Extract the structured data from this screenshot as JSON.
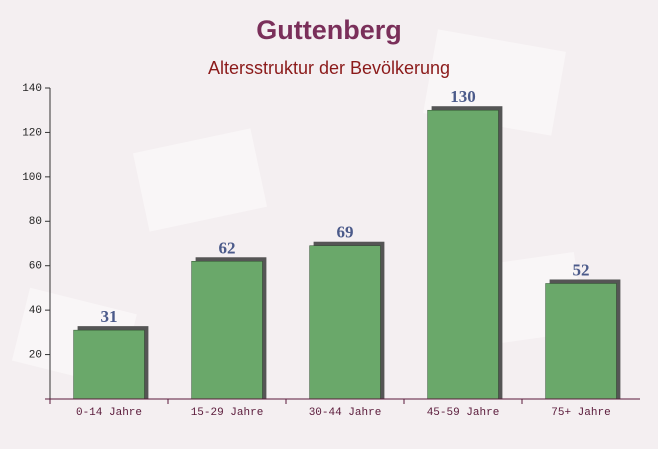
{
  "chart_data": {
    "type": "bar",
    "title": "Guttenberg",
    "subtitle": "Altersstruktur der Bevölkerung",
    "categories": [
      "0-14 Jahre",
      "15-29 Jahre",
      "30-44 Jahre",
      "45-59 Jahre",
      "75+ Jahre"
    ],
    "values": [
      31,
      62,
      69,
      130,
      52
    ],
    "color": "#6aa86a",
    "ylim": [
      0,
      140
    ],
    "yticks": [
      0,
      20,
      40,
      60,
      80,
      100,
      120,
      140
    ],
    "grid": false
  }
}
